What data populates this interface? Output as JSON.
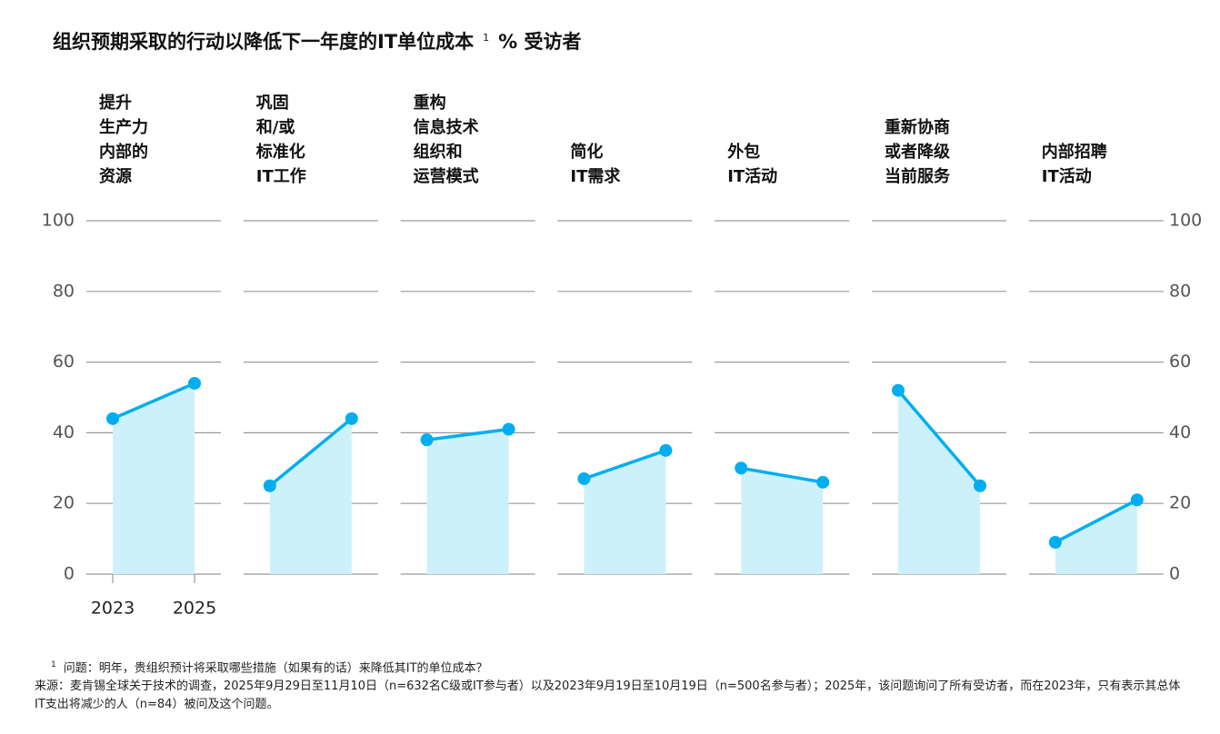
{
  "chart_data": {
    "type": "slope",
    "title": "组织预期采取的行动以降低下一年度的IT单位成本",
    "title_note": "1",
    "subtitle": "% 受访者",
    "categories": [
      "2023",
      "2025"
    ],
    "ylim": [
      0,
      100
    ],
    "yticks": [
      0,
      20,
      40,
      60,
      80,
      100
    ],
    "grid": true,
    "color": "#00aef0",
    "area_color": "#cdf1fb",
    "panels": [
      {
        "label": [
          "提升",
          "生产力",
          "内部的",
          "资源"
        ],
        "values": [
          44,
          54
        ]
      },
      {
        "label": [
          "巩固",
          "和/或",
          "标准化",
          "IT工作"
        ],
        "values": [
          25,
          44
        ]
      },
      {
        "label": [
          "重构",
          "信息技术",
          "组织和",
          "运营模式"
        ],
        "values": [
          38,
          41
        ]
      },
      {
        "label": [
          "简化",
          "IT需求"
        ],
        "values": [
          27,
          35
        ]
      },
      {
        "label": [
          "外包",
          "IT活动"
        ],
        "values": [
          30,
          26
        ]
      },
      {
        "label": [
          "重新协商",
          "或者降级",
          "当前服务"
        ],
        "values": [
          52,
          25
        ]
      },
      {
        "label": [
          "内部招聘",
          "IT活动"
        ],
        "values": [
          9,
          21
        ]
      }
    ],
    "footnote_mark": "1",
    "footnote": "问题：明年，贵组织预计将采取哪些措施（如果有的话）来降低其IT的单位成本？",
    "source": "来源：麦肯锡全球关于技术的调查，2025年9月29日至11月10日（n=632名C级或IT参与者）以及2023年9月19日至10月19日（n=500名参与者）；2025年，该问题询问了所有受访者，而在2023年，只有表示其总体IT支出将减少的人（n=84）被问及这个问题。"
  }
}
